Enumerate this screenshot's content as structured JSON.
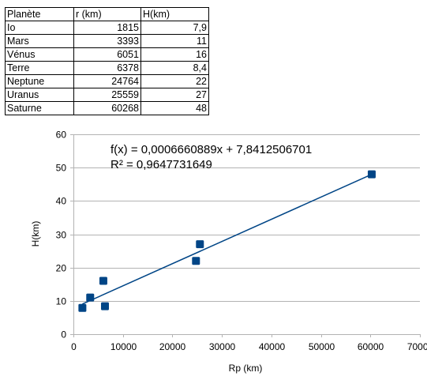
{
  "table": {
    "headers": [
      "Planète",
      "r (km)",
      "H(km)"
    ],
    "rows": [
      [
        "Io",
        "1815",
        "7,9"
      ],
      [
        "Mars",
        "3393",
        "11"
      ],
      [
        "Vénus",
        "6051",
        "16"
      ],
      [
        "Terre",
        "6378",
        "8,4"
      ],
      [
        "Neptune",
        "24764",
        "22"
      ],
      [
        "Uranus",
        "25559",
        "27"
      ],
      [
        "Saturne",
        "60268",
        "48"
      ]
    ]
  },
  "chart_data": {
    "type": "scatter",
    "xlabel": "Rp (km)",
    "ylabel": "H(km)",
    "xlim": [
      0,
      70000
    ],
    "ylim": [
      0,
      60
    ],
    "xticks": [
      0,
      10000,
      20000,
      30000,
      40000,
      50000,
      60000,
      70000
    ],
    "yticks": [
      0,
      10,
      20,
      30,
      40,
      50,
      60
    ],
    "grid": "horizontal",
    "points": [
      {
        "x": 1815,
        "y": 7.9
      },
      {
        "x": 3393,
        "y": 11
      },
      {
        "x": 6051,
        "y": 16
      },
      {
        "x": 6378,
        "y": 8.4
      },
      {
        "x": 24764,
        "y": 22
      },
      {
        "x": 25559,
        "y": 27
      },
      {
        "x": 60268,
        "y": 48
      }
    ],
    "trendline": {
      "type": "linear",
      "slope": 0.0006660889,
      "intercept": 7.8412506701,
      "x_range": [
        1815,
        60268
      ]
    },
    "annotations": [
      "f(x) = 0,0006660889x + 7,8412506701",
      "R² = 0,9647731649"
    ],
    "colors": {
      "marker": "#004586",
      "line": "#004586",
      "grid": "#b3b3b3"
    }
  }
}
